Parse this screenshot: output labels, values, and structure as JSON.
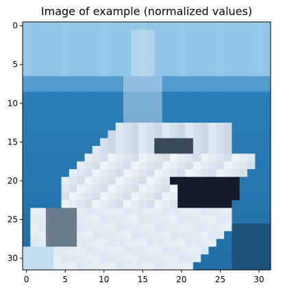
{
  "chart_data": {
    "type": "heatmap",
    "title": "Image of example (normalized values)",
    "image_size": [
      32,
      32
    ],
    "x_ticks": [
      "0",
      "5",
      "10",
      "15",
      "20",
      "25",
      "30"
    ],
    "y_ticks": [
      "0",
      "5",
      "10",
      "15",
      "20",
      "25",
      "30"
    ],
    "x_tick_values": [
      0,
      5,
      10,
      15,
      20,
      25,
      30
    ],
    "y_tick_values": [
      0,
      5,
      10,
      15,
      20,
      25,
      30
    ],
    "xlabel": "",
    "ylabel": "",
    "content": "pixelated photo of a white motor boat on blue water under a pale blue sky",
    "colors": {
      "sky": "#8ec4e6",
      "sky_light": "#a8d4ee",
      "horizon": "#3f8fc6",
      "water": "#2a7fb8",
      "water_dark": "#1f6aa0",
      "hull_white": "#dce8f2",
      "hull_shadow": "#b8c9d8",
      "cabin_dark": "#3a4a5a",
      "bow_dark": "#141c2a",
      "hull_light": "#eef4fa"
    }
  }
}
